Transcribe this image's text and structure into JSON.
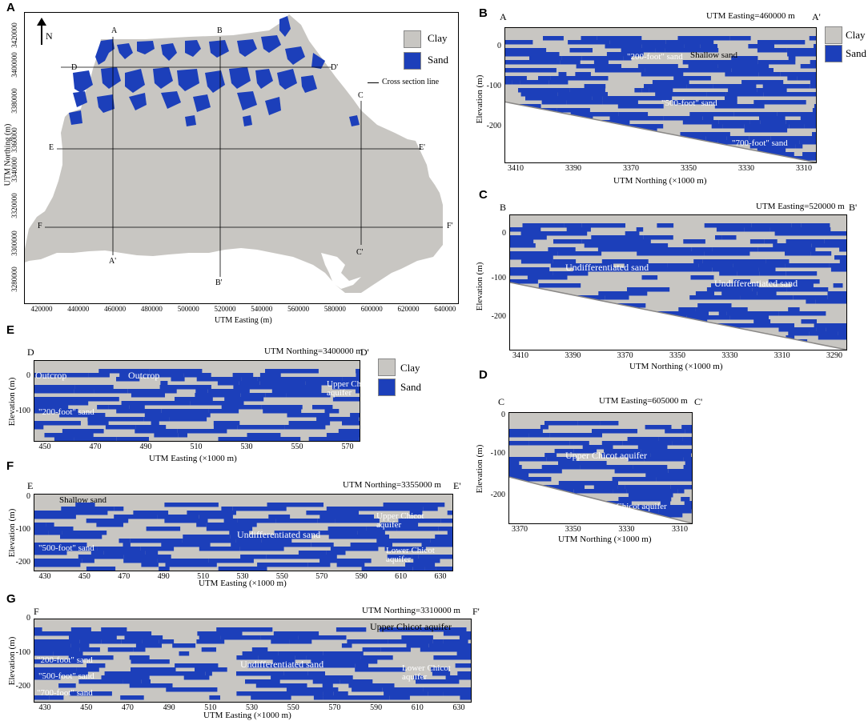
{
  "colors": {
    "clay": "#c8c6c2",
    "sand": "#1c3fba",
    "frame": "#000000"
  },
  "legend": {
    "clay": "Clay",
    "sand": "Sand",
    "line": "Cross section line"
  },
  "panelA": {
    "label": "A",
    "north": "N",
    "xlabel": "UTM Easting (m)",
    "ylabel": "UTM Northing (m)",
    "xticks": [
      "420000",
      "440000",
      "460000",
      "480000",
      "500000",
      "520000",
      "540000",
      "560000",
      "580000",
      "600000",
      "620000",
      "640000"
    ],
    "yticks": [
      "3420000",
      "3400000",
      "3380000",
      "3360000",
      "3340000",
      "3320000",
      "3300000",
      "3280000"
    ],
    "section_letters": [
      "A",
      "B",
      "D",
      "D'",
      "C",
      "E",
      "E'",
      "F",
      "F'",
      "A'",
      "C'",
      "B'"
    ]
  },
  "panelB": {
    "label": "B",
    "left": "A",
    "right": "A'",
    "title": "UTM Easting=460000 m",
    "xlabel": "UTM Northing (×1000 m)",
    "ylabel": "Elevation (m)",
    "xticks": [
      "3410",
      "3390",
      "3370",
      "3350",
      "3330",
      "3310"
    ],
    "yticks": [
      "0",
      "-100",
      "-200"
    ],
    "annotations": [
      "Shallow sand",
      "\"200-foot\" sand",
      "\"500-foot\" sand",
      "\"700-foot\" sand"
    ]
  },
  "panelC": {
    "label": "C",
    "left": "B",
    "right": "B'",
    "title": "UTM Easting=520000 m",
    "xlabel": "UTM Northing (×1000 m)",
    "ylabel": "Elevation (m)",
    "xticks": [
      "3410",
      "3390",
      "3370",
      "3350",
      "3330",
      "3310",
      "3290"
    ],
    "yticks": [
      "0",
      "-100",
      "-200"
    ],
    "annotations": [
      "Undifferentiated sand",
      "Undifferentiated sand"
    ]
  },
  "panelD": {
    "label": "D",
    "left": "C",
    "right": "C'",
    "title": "UTM Easting=605000 m",
    "xlabel": "UTM Northing (×1000 m)",
    "ylabel": "Elevation (m)",
    "xticks": [
      "3370",
      "3350",
      "3330",
      "3310"
    ],
    "yticks": [
      "0",
      "-100",
      "-200"
    ],
    "annotations": [
      "Upper Chicot aquifer",
      "Lower Chicot aquifer"
    ]
  },
  "panelE": {
    "label": "E",
    "left": "D",
    "right": "D'",
    "title": "UTM Northing=3400000 m",
    "xlabel": "UTM Easting (×1000 m)",
    "ylabel": "Elevation (m)",
    "xticks": [
      "450",
      "470",
      "490",
      "510",
      "530",
      "550",
      "570"
    ],
    "yticks": [
      "0",
      "-100"
    ],
    "annotations": [
      "Outcrop",
      "Outcrop",
      "Upper Chicot aquifer",
      "\"200-foot\" sand"
    ]
  },
  "panelF": {
    "label": "F",
    "left": "E",
    "right": "E'",
    "title": "UTM Northing=3355000 m",
    "xlabel": "UTM Easting (×1000 m)",
    "ylabel": "Elevation (m)",
    "xticks": [
      "430",
      "450",
      "470",
      "490",
      "510",
      "530",
      "550",
      "570",
      "590",
      "610",
      "630"
    ],
    "yticks": [
      "0",
      "-100",
      "-200"
    ],
    "annotations": [
      "Shallow sand",
      "Undifferentiated sand",
      "Upper Chicot aquifer",
      "\"500-foot\" sand",
      "Lower Chicot aquifer"
    ]
  },
  "panelG": {
    "label": "G",
    "left": "F",
    "right": "F'",
    "title": "UTM Northing=3310000 m",
    "xlabel": "UTM Easting (×1000 m)",
    "ylabel": "Elevation (m)",
    "xticks": [
      "430",
      "450",
      "470",
      "490",
      "510",
      "530",
      "550",
      "570",
      "590",
      "610",
      "630"
    ],
    "yticks": [
      "0",
      "-100",
      "-200"
    ],
    "annotations": [
      "Upper Chicot aquifer",
      "Undifferentiated sand",
      "Lower Chicot aquifer",
      "\"200-foot\" sand",
      "\"500-foot\" sand",
      "\"700-foot\" sand"
    ]
  }
}
